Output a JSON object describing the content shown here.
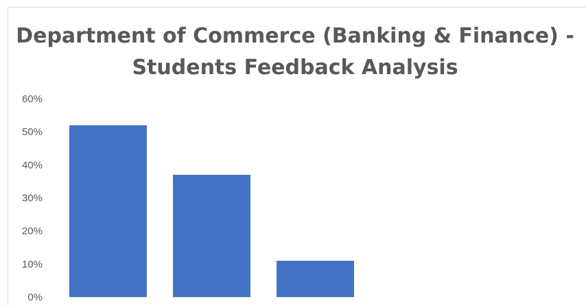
{
  "chart_data": {
    "type": "bar",
    "title": "Department of Commerce (Banking & Finance) -Students Feedback Analysis",
    "xlabel": "",
    "ylabel": "",
    "categories": [
      "",
      "",
      ""
    ],
    "values": [
      0.52,
      0.37,
      0.11
    ],
    "ylim": [
      0,
      0.6
    ],
    "yticks": [
      0,
      0.1,
      0.2,
      0.3,
      0.4,
      0.5,
      0.6
    ],
    "ytick_labels": [
      "0%",
      "10%",
      "20%",
      "30%",
      "40%",
      "50%",
      "60%"
    ],
    "grid": false,
    "bar_color": "#4472c4",
    "title_color": "#595959"
  }
}
